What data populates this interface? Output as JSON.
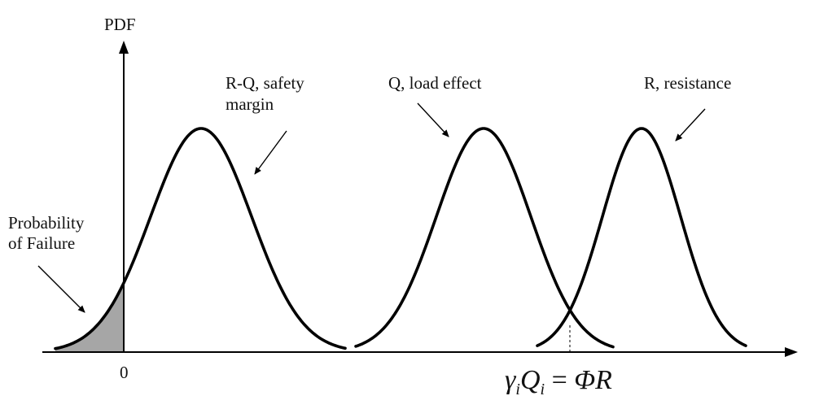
{
  "axis": {
    "y_label": "PDF",
    "origin_label": "0"
  },
  "labels": {
    "failure_line1": "Probability",
    "failure_line2": "of Failure",
    "margin_line1": "R-Q, safety",
    "margin_line2": "margin",
    "load": "Q, load effect",
    "resistance": "R, resistance"
  },
  "equation": {
    "gamma": "γ",
    "sub_i": "i",
    "q": "Q",
    "equals": " = ",
    "phi": "Φ",
    "r": "R"
  },
  "colors": {
    "curve": "#000000",
    "failure_fill": "#a6a6a6",
    "background": "#ffffff"
  },
  "chart_data": {
    "type": "line",
    "series": [
      {
        "name": "R-Q, safety margin"
      },
      {
        "name": "Q, load effect"
      },
      {
        "name": "R, resistance"
      }
    ],
    "shaded_region": "Probability of Failure"
  }
}
